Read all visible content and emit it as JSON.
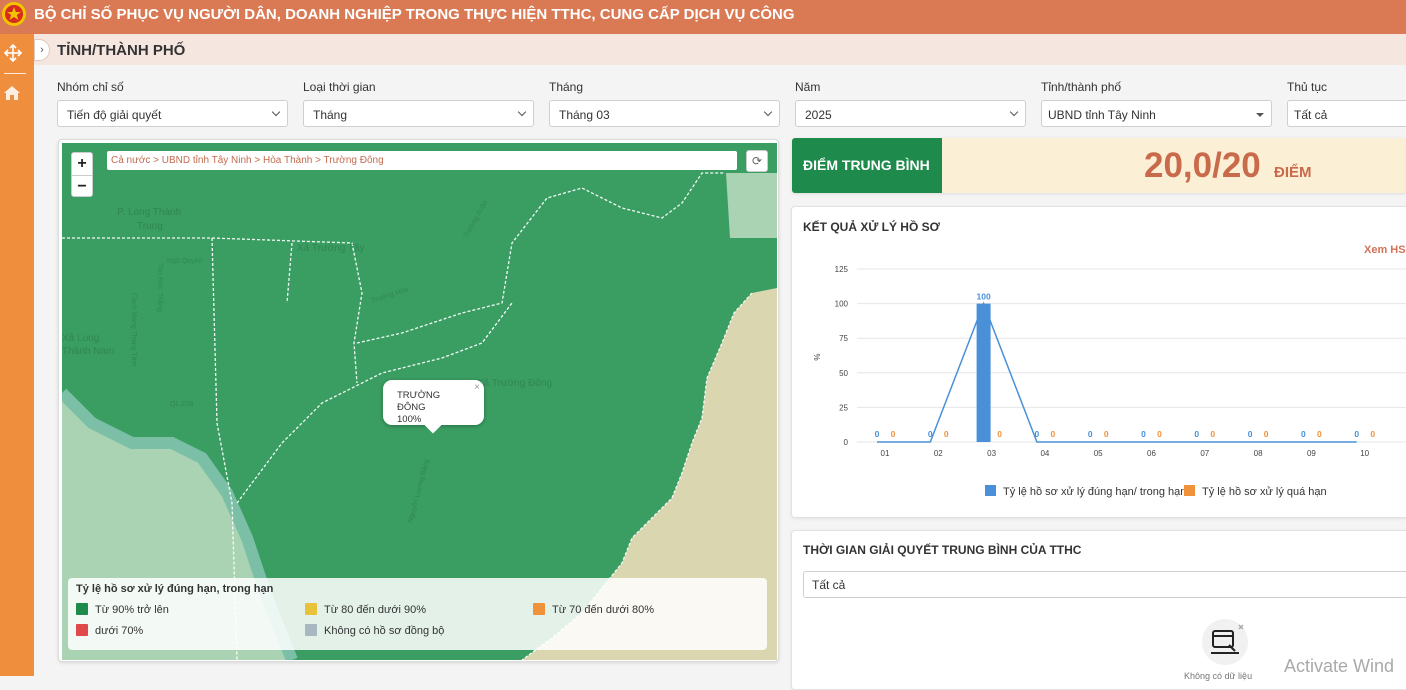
{
  "app": {
    "title": "BỘ CHỈ SỐ PHỤC VỤ NGƯỜI DÂN, DOANH NGHIỆP TRONG THỰC HIỆN TTHC, CUNG CẤP DỊCH VỤ CÔNG",
    "logo_icon": "national-emblem-icon"
  },
  "sidebar": {
    "items": [
      {
        "icon": "move-icon"
      },
      {
        "icon": "home-icon"
      }
    ]
  },
  "page": {
    "title": "TỈNH/THÀNH PHỐ"
  },
  "filters": [
    {
      "label": "Nhóm chỉ số",
      "value": "Tiến độ giải quyết"
    },
    {
      "label": "Loại thời gian",
      "value": "Tháng"
    },
    {
      "label": "Tháng",
      "value": "Tháng 03"
    },
    {
      "label": "Năm",
      "value": "2025"
    },
    {
      "label": "Tỉnh/thành phố",
      "value": "UBND tỉnh Tây Ninh"
    },
    {
      "label": "Thủ tục",
      "value": "Tất cả"
    }
  ],
  "map": {
    "zoom_in": "+",
    "zoom_out": "−",
    "breadcrumb": "Cả nước > UBND tỉnh Tây Ninh > Hòa Thành > Trường Đông",
    "refresh_icon": "refresh-icon",
    "place_labels": [
      "P. Long Thành",
      "Trung",
      "Xã Trường Tây",
      "Xã Long",
      "Thành Nam",
      "Xã Trường Đông",
      "Trường Hòa",
      "Trường Xuân",
      "Ngô Quyền",
      "Tôn Đức Thắng",
      "Nguyễn Lương Bằng",
      "QL 22B",
      "Cách Mạng Tháng Tám"
    ],
    "popup": {
      "name": "TRƯỜNG ĐÔNG",
      "value": "100%",
      "close": "×"
    },
    "legend": {
      "title": "Tỷ lệ hồ sơ xử lý đúng hạn, trong hạn",
      "items": [
        {
          "label": "Từ 90% trở lên",
          "color": "#1e8a4c"
        },
        {
          "label": "Từ 80 đến dưới 90%",
          "color": "#e8c23a"
        },
        {
          "label": "Từ 70 đến dưới 80%",
          "color": "#f0923a"
        },
        {
          "label": "dưới 70%",
          "color": "#e04a4a"
        },
        {
          "label": "Không có hồ sơ đồng bộ",
          "color": "#a9b8c0"
        }
      ]
    },
    "colors": {
      "region": "#3a9e62",
      "neighbor": "#a9d3b3",
      "land": "#d9d6b0",
      "river": "#7bbfa6"
    }
  },
  "score": {
    "label": "ĐIỂM TRUNG BÌNH",
    "value": "20,0/20",
    "unit": "ĐIỂM"
  },
  "results": {
    "title": "KẾT QUẢ XỬ LÝ HỒ SƠ",
    "link": "Xem HS c"
  },
  "chart_data": {
    "type": "bar",
    "title": "KẾT QUẢ XỬ LÝ HỒ SƠ",
    "ylabel": "%",
    "xlabel": "",
    "ylim": [
      0,
      125
    ],
    "y_ticks": [
      0,
      25,
      50,
      75,
      100,
      125
    ],
    "categories": [
      "01",
      "02",
      "03",
      "04",
      "05",
      "06",
      "07",
      "08",
      "09",
      "10"
    ],
    "series": [
      {
        "name": "Tỷ lệ hồ sơ xử lý đúng hạn/ trong hạn",
        "color": "#4a90d9",
        "values": [
          0,
          0,
          100,
          0,
          0,
          0,
          0,
          0,
          0,
          0
        ]
      },
      {
        "name": "Tỷ lệ hồ sơ xử lý quá hạn",
        "color": "#f0923a",
        "values": [
          0,
          0,
          0,
          0,
          0,
          0,
          0,
          0,
          0,
          0
        ]
      }
    ],
    "line_series": "Tỷ lệ hồ sơ xử lý đúng hạn/ trong hạn",
    "grid": true,
    "legend_position": "bottom"
  },
  "avg_time": {
    "title": "THỜI GIAN GIẢI QUYẾT TRUNG BÌNH CỦA TTHC",
    "select_value": "Tất cả",
    "empty_icon": "no-data-icon",
    "empty_text": "Không có dữ liệu"
  },
  "watermark": "Activate Wind"
}
